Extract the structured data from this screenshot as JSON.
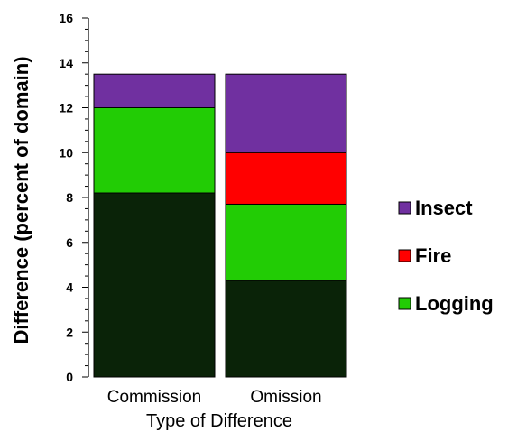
{
  "chart_data": {
    "type": "bar",
    "stacked": true,
    "categories": [
      "Commission",
      "Omission"
    ],
    "series": [
      {
        "name": "",
        "color": "#0a2308",
        "values": [
          8.2,
          4.3
        ]
      },
      {
        "name": "Logging",
        "color": "#22cc05",
        "values": [
          3.8,
          3.4
        ]
      },
      {
        "name": "Fire",
        "color": "#ff0000",
        "values": [
          0,
          2.3
        ]
      },
      {
        "name": "Insect",
        "color": "#7030a0",
        "values": [
          1.5,
          3.5
        ]
      }
    ],
    "legend_order": [
      "Insect",
      "Fire",
      "Logging"
    ],
    "xlabel": "Type of Difference",
    "ylabel": "Difference (percent of domain)",
    "ylim": [
      0,
      16
    ],
    "yticks": [
      0,
      2,
      4,
      6,
      8,
      10,
      12,
      14,
      16
    ],
    "legend_position": "right",
    "grid": false
  }
}
